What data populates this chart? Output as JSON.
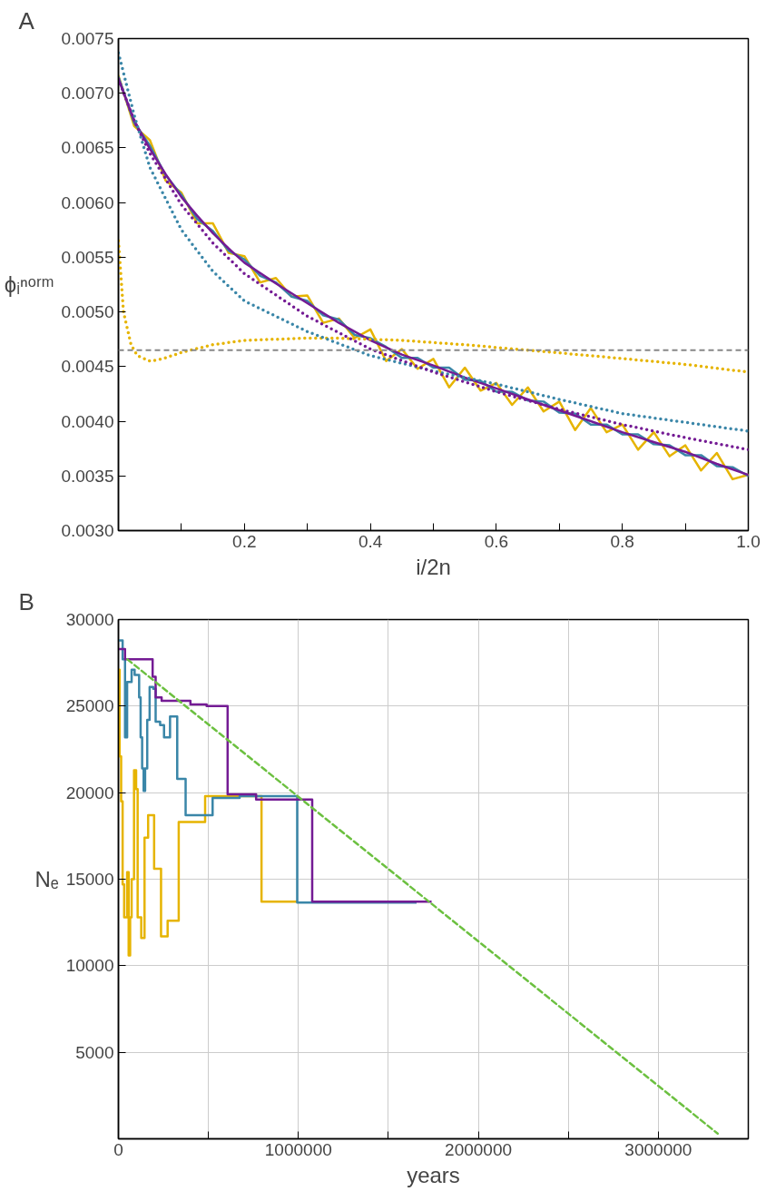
{
  "chart_data": [
    {
      "type": "line",
      "title": "A",
      "xlabel": "i/2n",
      "ylabel": "ϕᵢⁿᵒʳᵐ",
      "xlim": [
        0,
        1.0
      ],
      "ylim": [
        0.003,
        0.0075
      ],
      "xticks": [
        {
          "value": 0.1,
          "label": null
        },
        0.2,
        {
          "value": 0.3,
          "label": null
        },
        0.4,
        {
          "value": 0.5,
          "label": null
        },
        0.6,
        {
          "value": 0.7,
          "label": null
        },
        0.8,
        {
          "value": 0.9,
          "label": null
        },
        {
          "value": 1.0,
          "label": "1.0"
        }
      ],
      "yticks": [
        {
          "value": 0.003,
          "label": "0.0030"
        },
        {
          "value": 0.0035,
          "label": "0.0035"
        },
        {
          "value": 0.004,
          "label": "0.0040"
        },
        {
          "value": 0.0045,
          "label": "0.0045"
        },
        {
          "value": 0.005,
          "label": "0.0050"
        },
        {
          "value": 0.0055,
          "label": "0.0055"
        },
        {
          "value": 0.006,
          "label": "0.0060"
        },
        {
          "value": 0.0065,
          "label": "0.0065"
        },
        {
          "value": 0.007,
          "label": "0.0070"
        },
        {
          "value": 0.0075,
          "label": "0.0075"
        }
      ],
      "grid": false,
      "ref_lines": [
        {
          "axis": "y",
          "value": 0.00465,
          "color": "#888888",
          "line_style": "dashed"
        }
      ],
      "series": [
        {
          "color": "#e6b400",
          "line_style": "solid",
          "x": [
            0,
            0.025,
            0.05,
            0.075,
            0.1,
            0.125,
            0.15,
            0.175,
            0.2,
            0.225,
            0.25,
            0.275,
            0.3,
            0.325,
            0.35,
            0.375,
            0.4,
            0.425,
            0.45,
            0.475,
            0.5,
            0.525,
            0.55,
            0.575,
            0.6,
            0.625,
            0.65,
            0.675,
            0.7,
            0.725,
            0.75,
            0.775,
            0.8,
            0.825,
            0.85,
            0.875,
            0.9,
            0.925,
            0.95,
            0.975,
            1.0
          ],
          "values": [
            0.00716,
            0.0067,
            0.00657,
            0.0062,
            0.00609,
            0.00581,
            0.00581,
            0.00554,
            0.00551,
            0.00527,
            0.00531,
            0.00514,
            0.00515,
            0.0049,
            0.00494,
            0.00476,
            0.00484,
            0.00455,
            0.00466,
            0.00448,
            0.00457,
            0.00431,
            0.00449,
            0.00428,
            0.00435,
            0.00415,
            0.00431,
            0.00409,
            0.00418,
            0.00392,
            0.00412,
            0.0039,
            0.00397,
            0.00374,
            0.0039,
            0.00368,
            0.00378,
            0.00355,
            0.00371,
            0.00347,
            0.00351
          ]
        },
        {
          "color": "#3a86a8",
          "line_style": "solid",
          "x": [
            0,
            0.025,
            0.05,
            0.075,
            0.1,
            0.125,
            0.15,
            0.175,
            0.2,
            0.225,
            0.25,
            0.275,
            0.3,
            0.325,
            0.35,
            0.375,
            0.4,
            0.425,
            0.45,
            0.475,
            0.5,
            0.525,
            0.55,
            0.575,
            0.6,
            0.625,
            0.65,
            0.675,
            0.7,
            0.725,
            0.75,
            0.775,
            0.8,
            0.825,
            0.85,
            0.875,
            0.9,
            0.925,
            0.95,
            0.975,
            1.0
          ],
          "values": [
            0.00715,
            0.00673,
            0.00652,
            0.00625,
            0.00607,
            0.00585,
            0.00574,
            0.00556,
            0.00548,
            0.00533,
            0.00527,
            0.00514,
            0.0051,
            0.00497,
            0.00493,
            0.00479,
            0.00476,
            0.00468,
            0.00458,
            0.00458,
            0.00449,
            0.00449,
            0.00438,
            0.00437,
            0.00427,
            0.00427,
            0.00419,
            0.00418,
            0.00408,
            0.00407,
            0.00397,
            0.00397,
            0.00388,
            0.00388,
            0.00379,
            0.00378,
            0.00369,
            0.00369,
            0.00359,
            0.00358,
            0.0035
          ]
        },
        {
          "color": "#741b94",
          "line_style": "solid",
          "x": [
            0,
            0.025,
            0.05,
            0.075,
            0.1,
            0.125,
            0.15,
            0.175,
            0.2,
            0.25,
            0.3,
            0.35,
            0.4,
            0.45,
            0.5,
            0.55,
            0.6,
            0.65,
            0.7,
            0.75,
            0.8,
            0.85,
            0.9,
            0.95,
            1.0
          ],
          "values": [
            0.00713,
            0.00675,
            0.00649,
            0.00626,
            0.00605,
            0.00588,
            0.00572,
            0.00558,
            0.00545,
            0.00526,
            0.00508,
            0.0049,
            0.00474,
            0.00461,
            0.00451,
            0.0044,
            0.0043,
            0.0042,
            0.0041,
            0.004,
            0.0039,
            0.00381,
            0.00372,
            0.00361,
            0.00351
          ]
        },
        {
          "color": "#e6b400",
          "line_style": "dotted",
          "x": [
            0,
            0.008,
            0.02,
            0.03,
            0.05,
            0.07,
            0.1,
            0.15,
            0.2,
            0.3,
            0.35,
            0.45,
            0.55,
            0.65,
            0.75,
            0.9,
            1.0
          ],
          "values": [
            0.00565,
            0.005,
            0.0047,
            0.0046,
            0.00455,
            0.00457,
            0.00463,
            0.0047,
            0.00474,
            0.00476,
            0.00476,
            0.00474,
            0.0047,
            0.00465,
            0.0046,
            0.00452,
            0.00445
          ]
        },
        {
          "color": "#3a86a8",
          "line_style": "dotted",
          "x": [
            0,
            0.025,
            0.05,
            0.1,
            0.15,
            0.2,
            0.3,
            0.4,
            0.5,
            0.6,
            0.7,
            0.8,
            0.9,
            1.0
          ],
          "values": [
            0.00737,
            0.0068,
            0.00632,
            0.00575,
            0.00537,
            0.0051,
            0.00482,
            0.0046,
            0.00446,
            0.00434,
            0.0042,
            0.00407,
            0.00399,
            0.00391
          ]
        },
        {
          "color": "#741b94",
          "line_style": "dotted",
          "x": [
            0,
            0.025,
            0.05,
            0.1,
            0.15,
            0.2,
            0.3,
            0.4,
            0.5,
            0.6,
            0.7,
            0.8,
            0.9,
            1.0
          ],
          "values": [
            0.00713,
            0.00675,
            0.00645,
            0.00598,
            0.00563,
            0.00535,
            0.00496,
            0.00466,
            0.00445,
            0.00427,
            0.00411,
            0.00397,
            0.00385,
            0.00374
          ]
        }
      ]
    },
    {
      "type": "step",
      "title": "B",
      "xlabel": "years",
      "ylabel": "Nₑ",
      "xlim": [
        0,
        3500000
      ],
      "ylim": [
        0,
        30000
      ],
      "xticks": [
        0,
        {
          "value": 500000,
          "label": null
        },
        1000000,
        {
          "value": 1500000,
          "label": null
        },
        2000000,
        {
          "value": 2500000,
          "label": null
        },
        3000000
      ],
      "yticks": [
        5000,
        10000,
        15000,
        20000,
        25000,
        30000
      ],
      "grid": true,
      "series": [
        {
          "color": "#e6b400",
          "x": [
            0,
            6700,
            15000,
            23300,
            31700,
            48300,
            56700,
            65000,
            73300,
            86700,
            98300,
            106700,
            126700,
            145000,
            165000,
            198300,
            236700,
            273300,
            335000,
            481700,
            665000,
            795000,
            993300
          ],
          "values": [
            27100,
            22100,
            19500,
            14700,
            12800,
            15400,
            10600,
            12800,
            15000,
            21300,
            20200,
            12800,
            11600,
            17400,
            18700,
            15600,
            11700,
            12600,
            18300,
            19800,
            19800,
            13700,
            13700
          ]
        },
        {
          "color": "#3a86a8",
          "x": [
            0,
            23300,
            36700,
            48300,
            73300,
            90000,
            115000,
            123300,
            131700,
            140000,
            148300,
            160000,
            173300,
            193300,
            206700,
            231700,
            253300,
            286700,
            326700,
            373300,
            523300,
            673300,
            993300,
            1656700
          ],
          "values": [
            28800,
            27700,
            23200,
            26400,
            27100,
            26800,
            25500,
            23200,
            21400,
            20100,
            21400,
            24200,
            26100,
            26000,
            24100,
            23900,
            23200,
            24400,
            20800,
            18700,
            19700,
            19800,
            13650,
            13650
          ]
        },
        {
          "color": "#741b94",
          "x": [
            0,
            36700,
            190000,
            206700,
            240000,
            400000,
            490000,
            606700,
            765000,
            1076700,
            1740000
          ],
          "values": [
            28300,
            27700,
            26700,
            25500,
            25300,
            25100,
            25000,
            19900,
            19600,
            13700,
            13700
          ]
        },
        {
          "type": "line",
          "color": "#6cc040",
          "line_style": "dashed",
          "x": [
            50000,
            3330000
          ],
          "values": [
            27700,
            300
          ]
        }
      ]
    }
  ]
}
